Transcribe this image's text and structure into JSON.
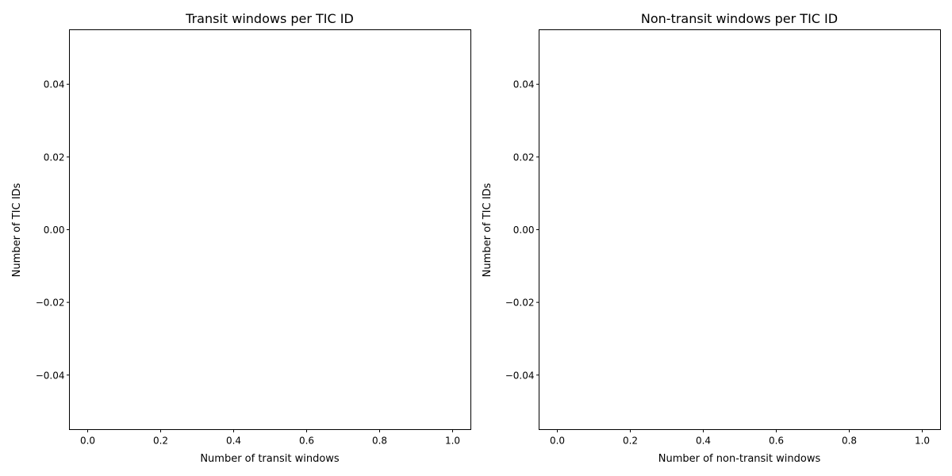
{
  "chart_data": [
    {
      "type": "bar",
      "title": "Transit windows per TIC ID",
      "xlabel": "Number of transit windows",
      "ylabel": "Number of TIC IDs",
      "xlim": [
        -0.05,
        1.05
      ],
      "ylim": [
        -0.055,
        0.055
      ],
      "xticks": [
        0.0,
        0.2,
        0.4,
        0.6,
        0.8,
        1.0
      ],
      "xtick_labels": [
        "0.0",
        "0.2",
        "0.4",
        "0.6",
        "0.8",
        "1.0"
      ],
      "yticks": [
        -0.04,
        -0.02,
        0.0,
        0.02,
        0.04
      ],
      "ytick_labels": [
        "−0.04",
        "−0.02",
        "0.00",
        "0.02",
        "0.04"
      ],
      "categories": [],
      "values": [],
      "grid": false
    },
    {
      "type": "bar",
      "title": "Non-transit windows per TIC ID",
      "xlabel": "Number of non-transit windows",
      "ylabel": "Number of TIC IDs",
      "xlim": [
        -0.05,
        1.05
      ],
      "ylim": [
        -0.055,
        0.055
      ],
      "xticks": [
        0.0,
        0.2,
        0.4,
        0.6,
        0.8,
        1.0
      ],
      "xtick_labels": [
        "0.0",
        "0.2",
        "0.4",
        "0.6",
        "0.8",
        "1.0"
      ],
      "yticks": [
        -0.04,
        -0.02,
        0.0,
        0.02,
        0.04
      ],
      "ytick_labels": [
        "−0.04",
        "−0.02",
        "0.00",
        "0.02",
        "0.04"
      ],
      "categories": [],
      "values": [],
      "grid": false
    }
  ]
}
